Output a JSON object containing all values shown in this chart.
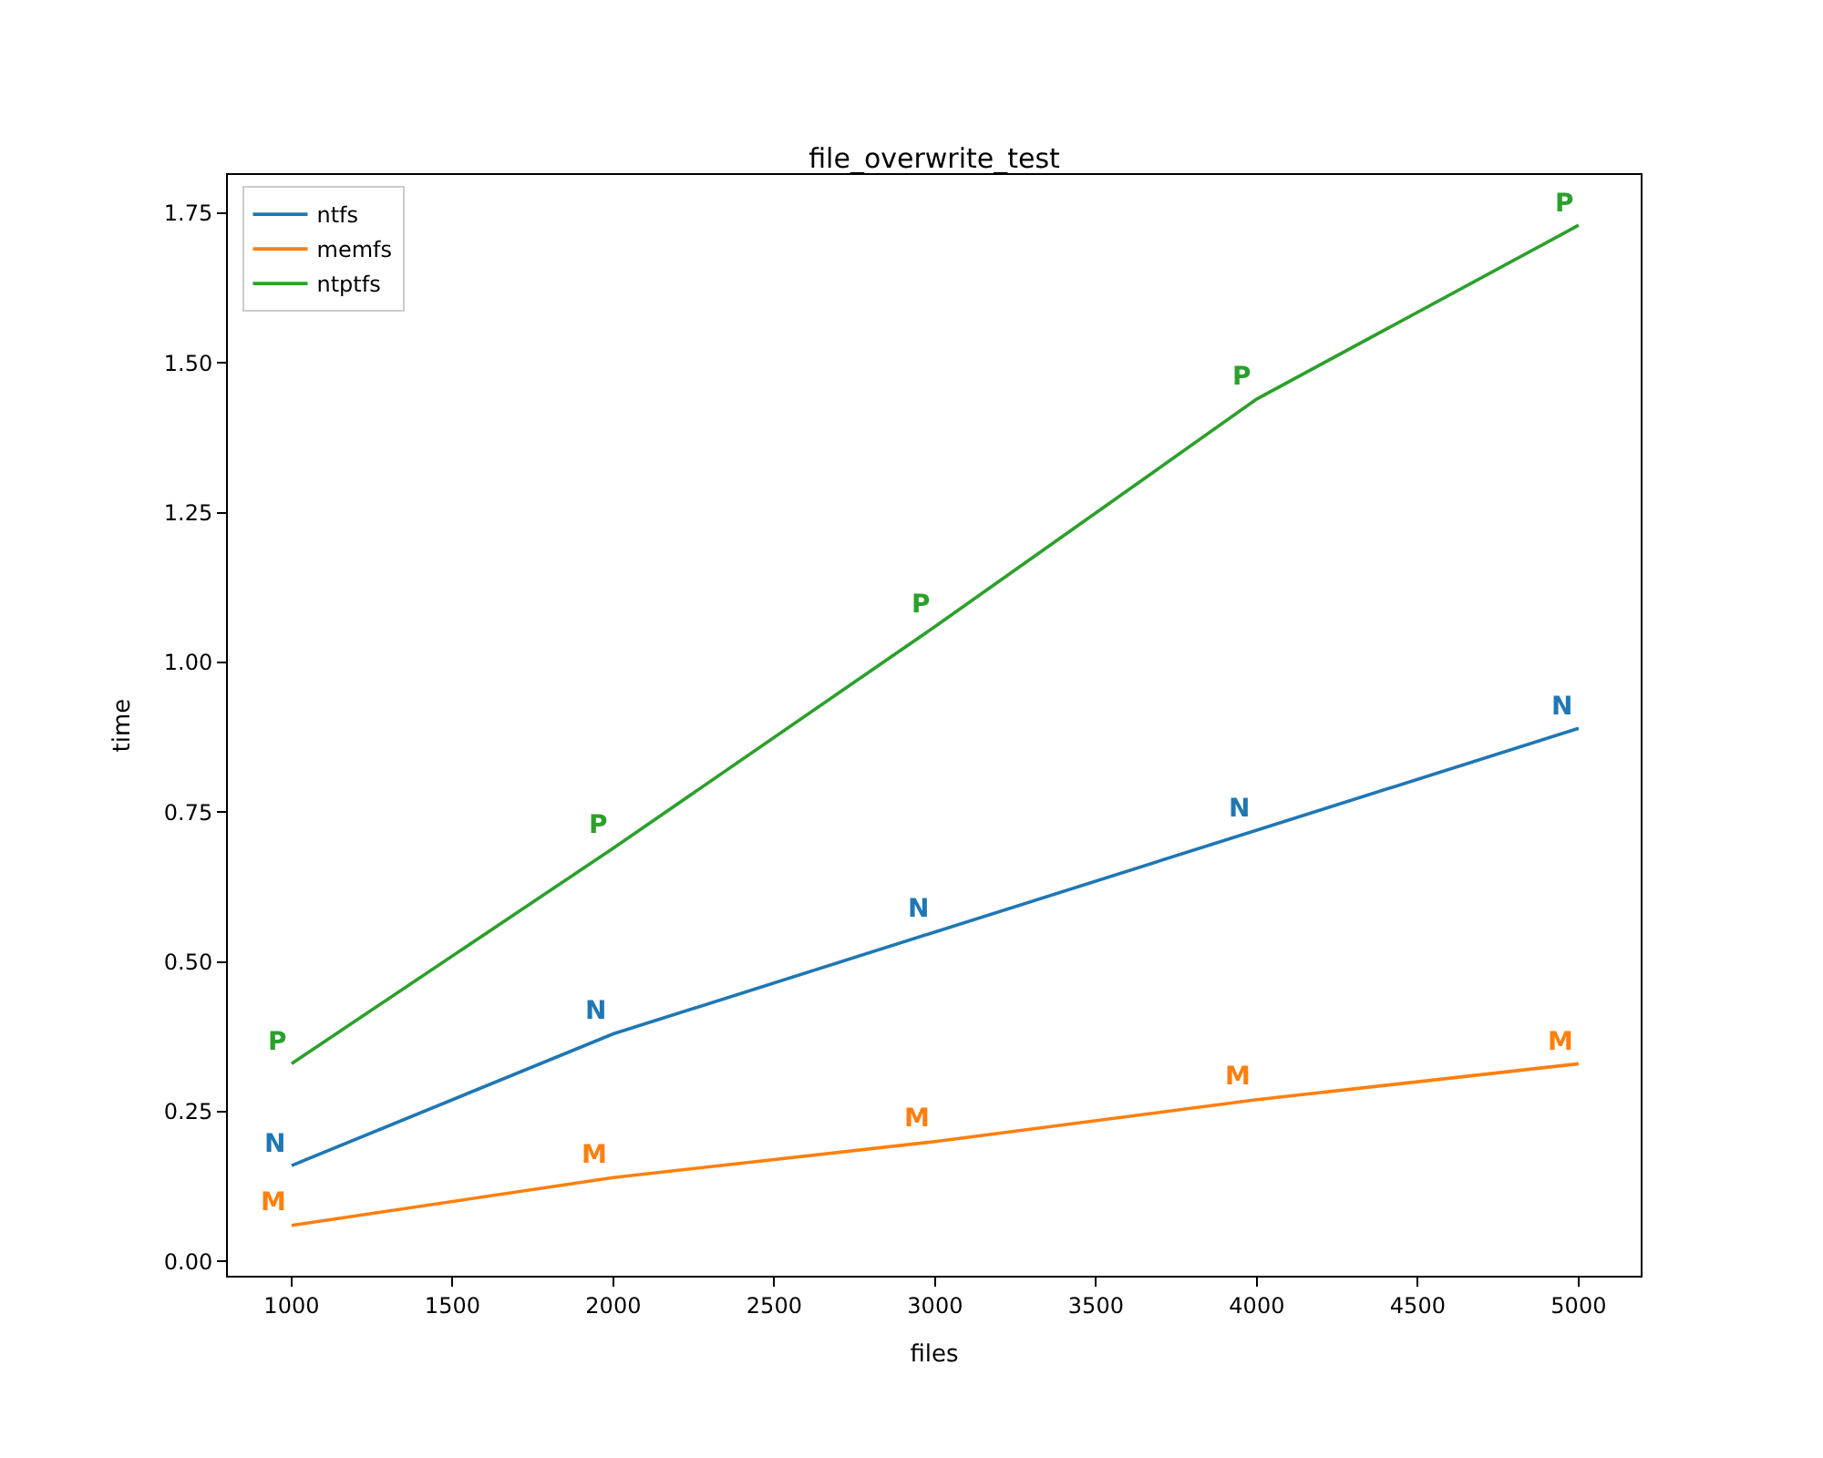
{
  "chart_data": {
    "type": "line",
    "title": "file_overwrite_test",
    "xlabel": "files",
    "ylabel": "time",
    "x": [
      1000,
      2000,
      3000,
      4000,
      5000
    ],
    "series": [
      {
        "name": "ntfs",
        "color": "#1f77b4",
        "values": [
          0.16,
          0.38,
          0.55,
          0.72,
          0.89
        ],
        "value_labels": [
          "N",
          "N",
          "N",
          "N",
          "N"
        ]
      },
      {
        "name": "memfs",
        "color": "#ff7f0e",
        "values": [
          0.06,
          0.14,
          0.2,
          0.27,
          0.33
        ],
        "value_labels": [
          "M",
          "M",
          "M",
          "M",
          "M"
        ]
      },
      {
        "name": "ntptfs",
        "color": "#2ca02c",
        "values": [
          0.33,
          0.69,
          1.06,
          1.44,
          1.73
        ],
        "value_labels": [
          "P",
          "P",
          "P",
          "P",
          "P"
        ]
      }
    ],
    "xlim": [
      802,
      5193
    ],
    "xticks": [
      1000,
      1500,
      2000,
      2500,
      3000,
      3500,
      4000,
      4500,
      5000
    ],
    "ylim": [
      -0.024,
      1.814
    ],
    "yticks": [
      {
        "value": 0,
        "label": "0.00"
      },
      {
        "value": 0.25,
        "label": "0.25"
      },
      {
        "value": 0.5,
        "label": "0.50"
      },
      {
        "value": 0.75,
        "label": "0.75"
      },
      {
        "value": 1.0,
        "label": "1.00"
      },
      {
        "value": 1.25,
        "label": "1.25"
      },
      {
        "value": 1.5,
        "label": "1.50"
      },
      {
        "value": 1.75,
        "label": "1.75"
      }
    ],
    "legend": "top left"
  }
}
